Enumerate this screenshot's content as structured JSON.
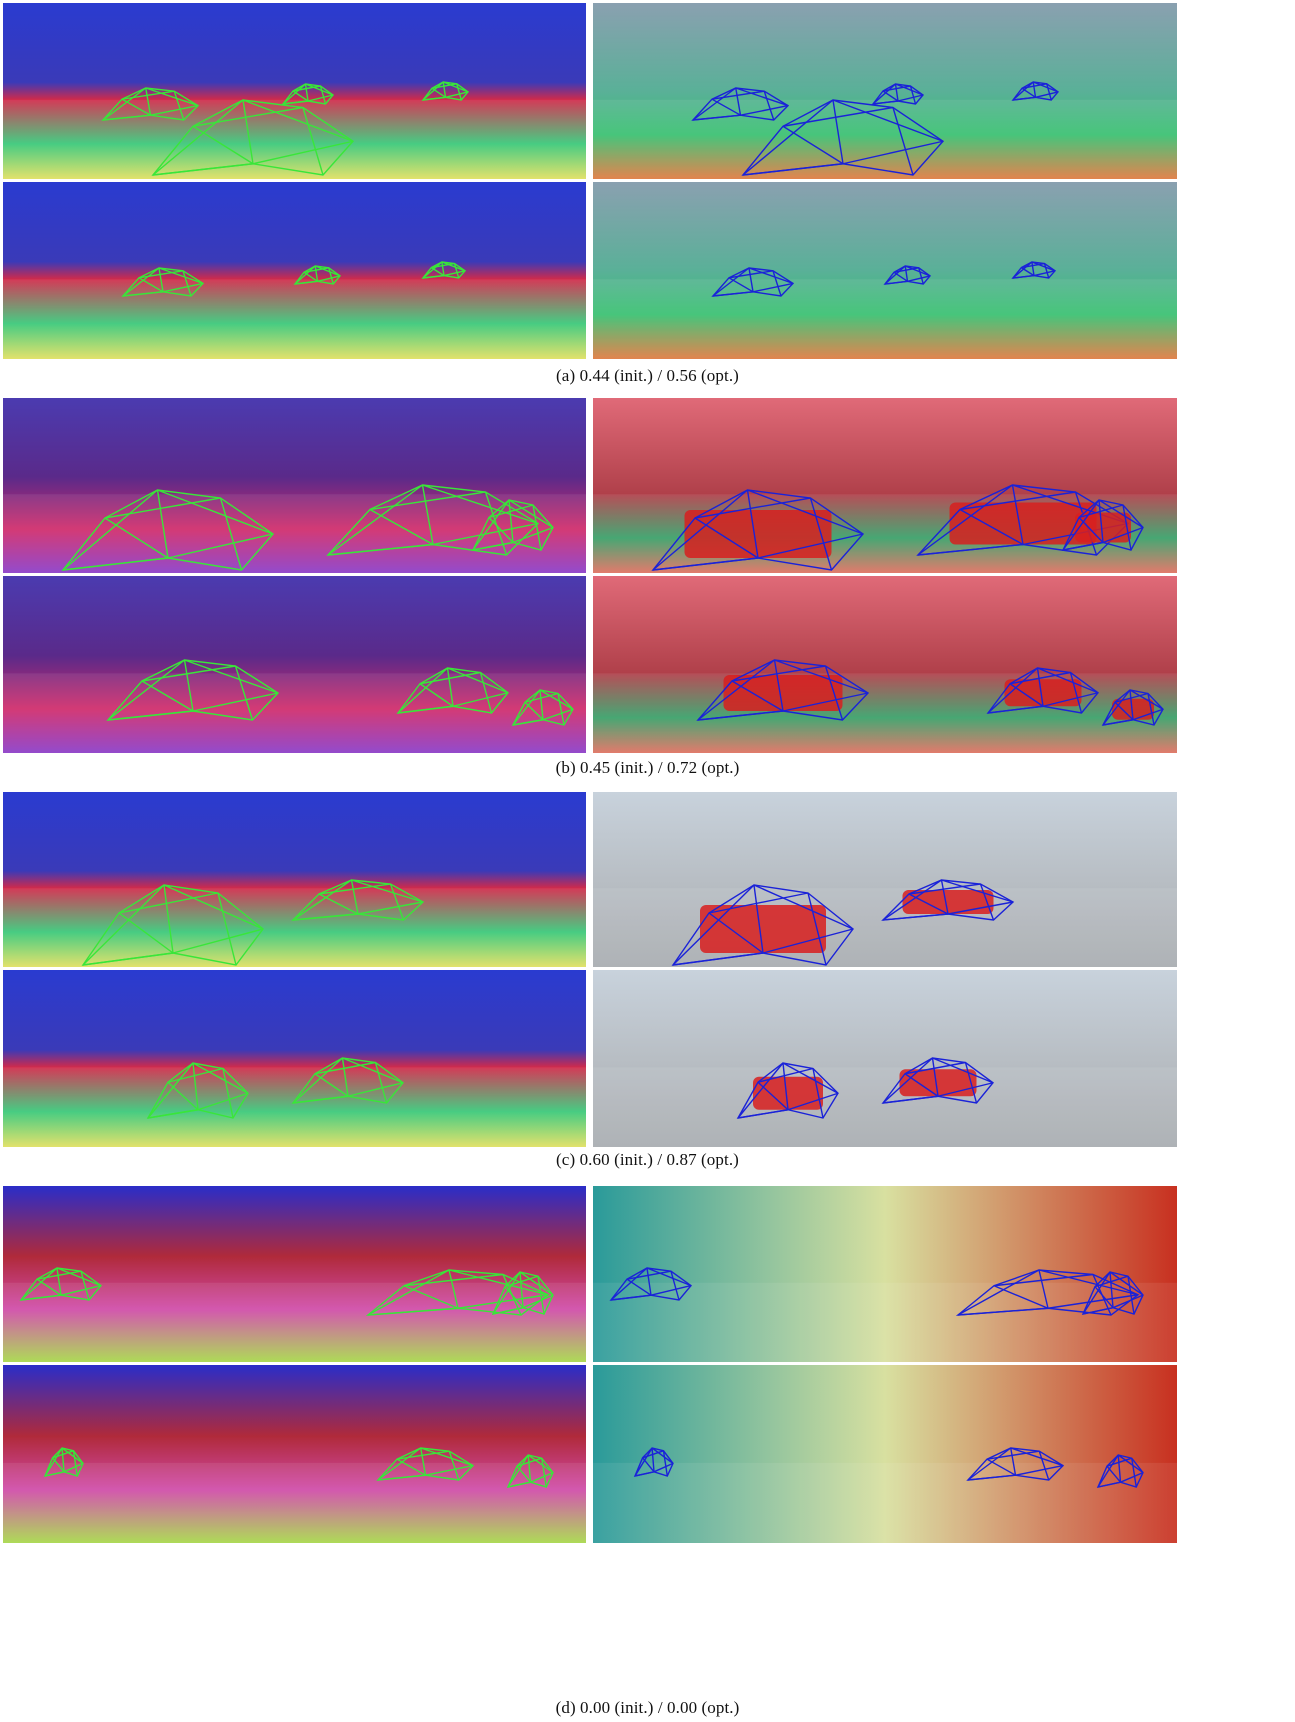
{
  "figure": {
    "panels": [
      {
        "id": "a",
        "caption": "(a)  0.44 (init.) / 0.56 (opt.)"
      },
      {
        "id": "b",
        "caption": "(b)  0.45 (init.) / 0.72 (opt.)"
      },
      {
        "id": "c",
        "caption": "(c)  0.60 (init.) / 0.87 (opt.)"
      },
      {
        "id": "d",
        "caption": "(d)  0.00 (init.) / 0.00 (opt.)"
      }
    ]
  },
  "colors": {
    "wireframe_left": "#39e639",
    "wireframe_right": "#1a22d8",
    "car_mask": "#d81e1e"
  }
}
